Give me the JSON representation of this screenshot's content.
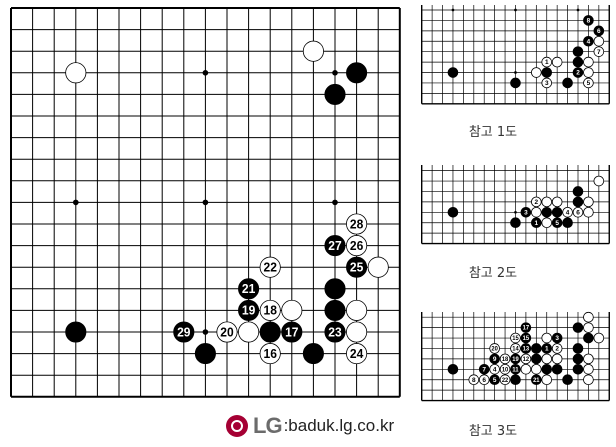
{
  "main_board": {
    "size": 19,
    "hoshi": [
      [
        3,
        3
      ],
      [
        9,
        3
      ],
      [
        15,
        3
      ],
      [
        3,
        9
      ],
      [
        9,
        9
      ],
      [
        15,
        9
      ],
      [
        3,
        15
      ],
      [
        9,
        15
      ],
      [
        15,
        15
      ]
    ],
    "stones": [
      [
        3,
        3,
        "W",
        ""
      ],
      [
        14,
        2,
        "W",
        ""
      ],
      [
        16,
        3,
        "B",
        ""
      ],
      [
        15,
        4,
        "B",
        ""
      ],
      [
        3,
        15,
        "B",
        ""
      ],
      [
        16,
        10,
        "W",
        "28"
      ],
      [
        15,
        11,
        "B",
        "27"
      ],
      [
        16,
        11,
        "W",
        "26"
      ],
      [
        16,
        12,
        "B",
        "25"
      ],
      [
        17,
        12,
        "W",
        ""
      ],
      [
        12,
        12,
        "W",
        "22"
      ],
      [
        11,
        13,
        "B",
        "21"
      ],
      [
        15,
        13,
        "B",
        ""
      ],
      [
        11,
        14,
        "B",
        "19"
      ],
      [
        12,
        14,
        "W",
        "18"
      ],
      [
        13,
        14,
        "W",
        ""
      ],
      [
        15,
        14,
        "B",
        ""
      ],
      [
        16,
        14,
        "W",
        ""
      ],
      [
        8,
        15,
        "B",
        "29"
      ],
      [
        10,
        15,
        "W",
        "20"
      ],
      [
        11,
        15,
        "W",
        ""
      ],
      [
        12,
        15,
        "B",
        ""
      ],
      [
        13,
        15,
        "B",
        "17"
      ],
      [
        15,
        15,
        "B",
        "23"
      ],
      [
        16,
        15,
        "W",
        ""
      ],
      [
        9,
        16,
        "B",
        ""
      ],
      [
        12,
        16,
        "W",
        "16"
      ],
      [
        14,
        16,
        "B",
        ""
      ],
      [
        16,
        16,
        "W",
        "24"
      ]
    ]
  },
  "ref_diagrams": [
    {
      "caption": "참고 1도",
      "stones": [
        [
          16,
          10,
          "B",
          "8"
        ],
        [
          17,
          11,
          "B",
          "6"
        ],
        [
          16,
          12,
          "B",
          "4"
        ],
        [
          17,
          12,
          "W",
          ""
        ],
        [
          17,
          13,
          "W",
          "7"
        ],
        [
          15,
          13,
          "B",
          ""
        ],
        [
          12,
          14,
          "W",
          "1"
        ],
        [
          13,
          14,
          "W",
          ""
        ],
        [
          15,
          14,
          "B",
          ""
        ],
        [
          16,
          14,
          "W",
          ""
        ],
        [
          3,
          15,
          "B",
          ""
        ],
        [
          11,
          15,
          "W",
          ""
        ],
        [
          12,
          15,
          "B",
          ""
        ],
        [
          15,
          15,
          "B",
          "2"
        ],
        [
          16,
          15,
          "W",
          ""
        ],
        [
          9,
          16,
          "B",
          ""
        ],
        [
          12,
          16,
          "W",
          "3"
        ],
        [
          14,
          16,
          "B",
          ""
        ],
        [
          16,
          16,
          "W",
          "5"
        ]
      ]
    },
    {
      "caption": "참고 2도",
      "stones": [
        [
          17,
          12,
          "W",
          ""
        ],
        [
          15,
          13,
          "B",
          ""
        ],
        [
          11,
          14,
          "W",
          "2"
        ],
        [
          12,
          14,
          "W",
          ""
        ],
        [
          13,
          14,
          "W",
          ""
        ],
        [
          15,
          14,
          "B",
          ""
        ],
        [
          16,
          14,
          "W",
          ""
        ],
        [
          3,
          15,
          "B",
          ""
        ],
        [
          10,
          15,
          "B",
          "3"
        ],
        [
          11,
          15,
          "W",
          ""
        ],
        [
          12,
          15,
          "B",
          ""
        ],
        [
          13,
          15,
          "B",
          ""
        ],
        [
          14,
          15,
          "W",
          "4"
        ],
        [
          15,
          15,
          "W",
          "6"
        ],
        [
          16,
          15,
          "W",
          ""
        ],
        [
          9,
          16,
          "B",
          ""
        ],
        [
          11,
          16,
          "B",
          "1"
        ],
        [
          12,
          16,
          "W",
          ""
        ],
        [
          13,
          16,
          "B",
          "5"
        ],
        [
          14,
          16,
          "B",
          ""
        ]
      ]
    },
    {
      "caption": "참고 3도",
      "stones": [
        [
          16,
          10,
          "W",
          ""
        ],
        [
          15,
          11,
          "B",
          ""
        ],
        [
          16,
          11,
          "W",
          ""
        ],
        [
          10,
          11,
          "B",
          "17"
        ],
        [
          9,
          12,
          "W",
          "15"
        ],
        [
          10,
          12,
          "B",
          "15"
        ],
        [
          12,
          12,
          "W",
          ""
        ],
        [
          13,
          12,
          "B",
          "3"
        ],
        [
          16,
          12,
          "B",
          ""
        ],
        [
          17,
          12,
          "W",
          ""
        ],
        [
          7,
          13,
          "W",
          "20"
        ],
        [
          9,
          13,
          "W",
          "14"
        ],
        [
          10,
          13,
          "B",
          "13"
        ],
        [
          11,
          13,
          "B",
          ""
        ],
        [
          12,
          13,
          "B",
          "1"
        ],
        [
          13,
          13,
          "W",
          "2"
        ],
        [
          15,
          13,
          "B",
          ""
        ],
        [
          7,
          14,
          "B",
          "9"
        ],
        [
          8,
          14,
          "W",
          "18"
        ],
        [
          9,
          14,
          "B",
          "19"
        ],
        [
          10,
          14,
          "W",
          "12"
        ],
        [
          11,
          14,
          "B",
          ""
        ],
        [
          12,
          14,
          "W",
          ""
        ],
        [
          13,
          14,
          "W",
          ""
        ],
        [
          15,
          14,
          "B",
          ""
        ],
        [
          16,
          14,
          "W",
          ""
        ],
        [
          3,
          15,
          "B",
          ""
        ],
        [
          6,
          15,
          "B",
          "7"
        ],
        [
          7,
          15,
          "W",
          "4"
        ],
        [
          8,
          15,
          "W",
          "10"
        ],
        [
          9,
          15,
          "B",
          "11"
        ],
        [
          10,
          15,
          "W",
          ""
        ],
        [
          11,
          15,
          "W",
          ""
        ],
        [
          12,
          15,
          "B",
          ""
        ],
        [
          13,
          15,
          "B",
          ""
        ],
        [
          15,
          15,
          "B",
          ""
        ],
        [
          16,
          15,
          "W",
          ""
        ],
        [
          5,
          16,
          "W",
          "8"
        ],
        [
          6,
          16,
          "W",
          "6"
        ],
        [
          7,
          16,
          "B",
          "5"
        ],
        [
          8,
          16,
          "W",
          "22"
        ],
        [
          9,
          16,
          "B",
          ""
        ],
        [
          11,
          16,
          "B",
          "21"
        ],
        [
          12,
          16,
          "W",
          ""
        ],
        [
          14,
          16,
          "B",
          ""
        ],
        [
          16,
          16,
          "W",
          ""
        ]
      ]
    }
  ],
  "footer": {
    "logo_text": "LG",
    "url": ":baduk.lg.co.kr",
    "logo_color": "#a50034"
  }
}
